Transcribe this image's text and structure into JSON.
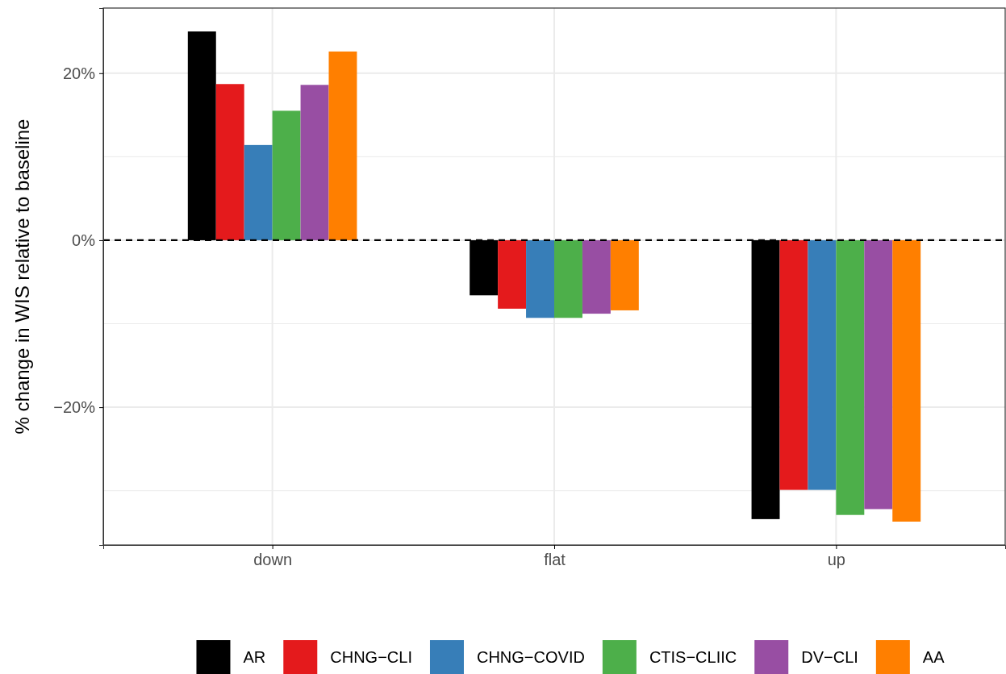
{
  "chart_data": {
    "type": "bar",
    "ylabel": "% change in WIS relative to baseline",
    "categories": [
      "down",
      "flat",
      "up"
    ],
    "series": [
      {
        "name": "AR",
        "color": "#000000",
        "values": [
          25.0,
          -6.6,
          -33.4
        ]
      },
      {
        "name": "CHNG−CLI",
        "color": "#e41a1c",
        "values": [
          18.7,
          -8.2,
          -29.9
        ]
      },
      {
        "name": "CHNG−COVID",
        "color": "#377eb8",
        "values": [
          11.4,
          -9.3,
          -29.9
        ]
      },
      {
        "name": "CTIS−CLIIC",
        "color": "#4daf4a",
        "values": [
          15.5,
          -9.3,
          -32.9
        ]
      },
      {
        "name": "DV−CLI",
        "color": "#984ea3",
        "values": [
          18.6,
          -8.8,
          -32.2
        ]
      },
      {
        "name": "AA",
        "color": "#ff7f00",
        "values": [
          22.6,
          -8.4,
          -33.7
        ]
      }
    ],
    "ylim": [
      -36.5,
      27.8
    ],
    "yticks": [
      {
        "value": -20,
        "label": "−20%"
      },
      {
        "value": 0,
        "label": "0%"
      },
      {
        "value": 20,
        "label": "20%"
      }
    ],
    "grid": true,
    "legend": "bottom",
    "ref_lines": [
      {
        "axis": "y",
        "value": 0,
        "label": null,
        "line_style": "dashed",
        "color": "#000000"
      }
    ]
  }
}
